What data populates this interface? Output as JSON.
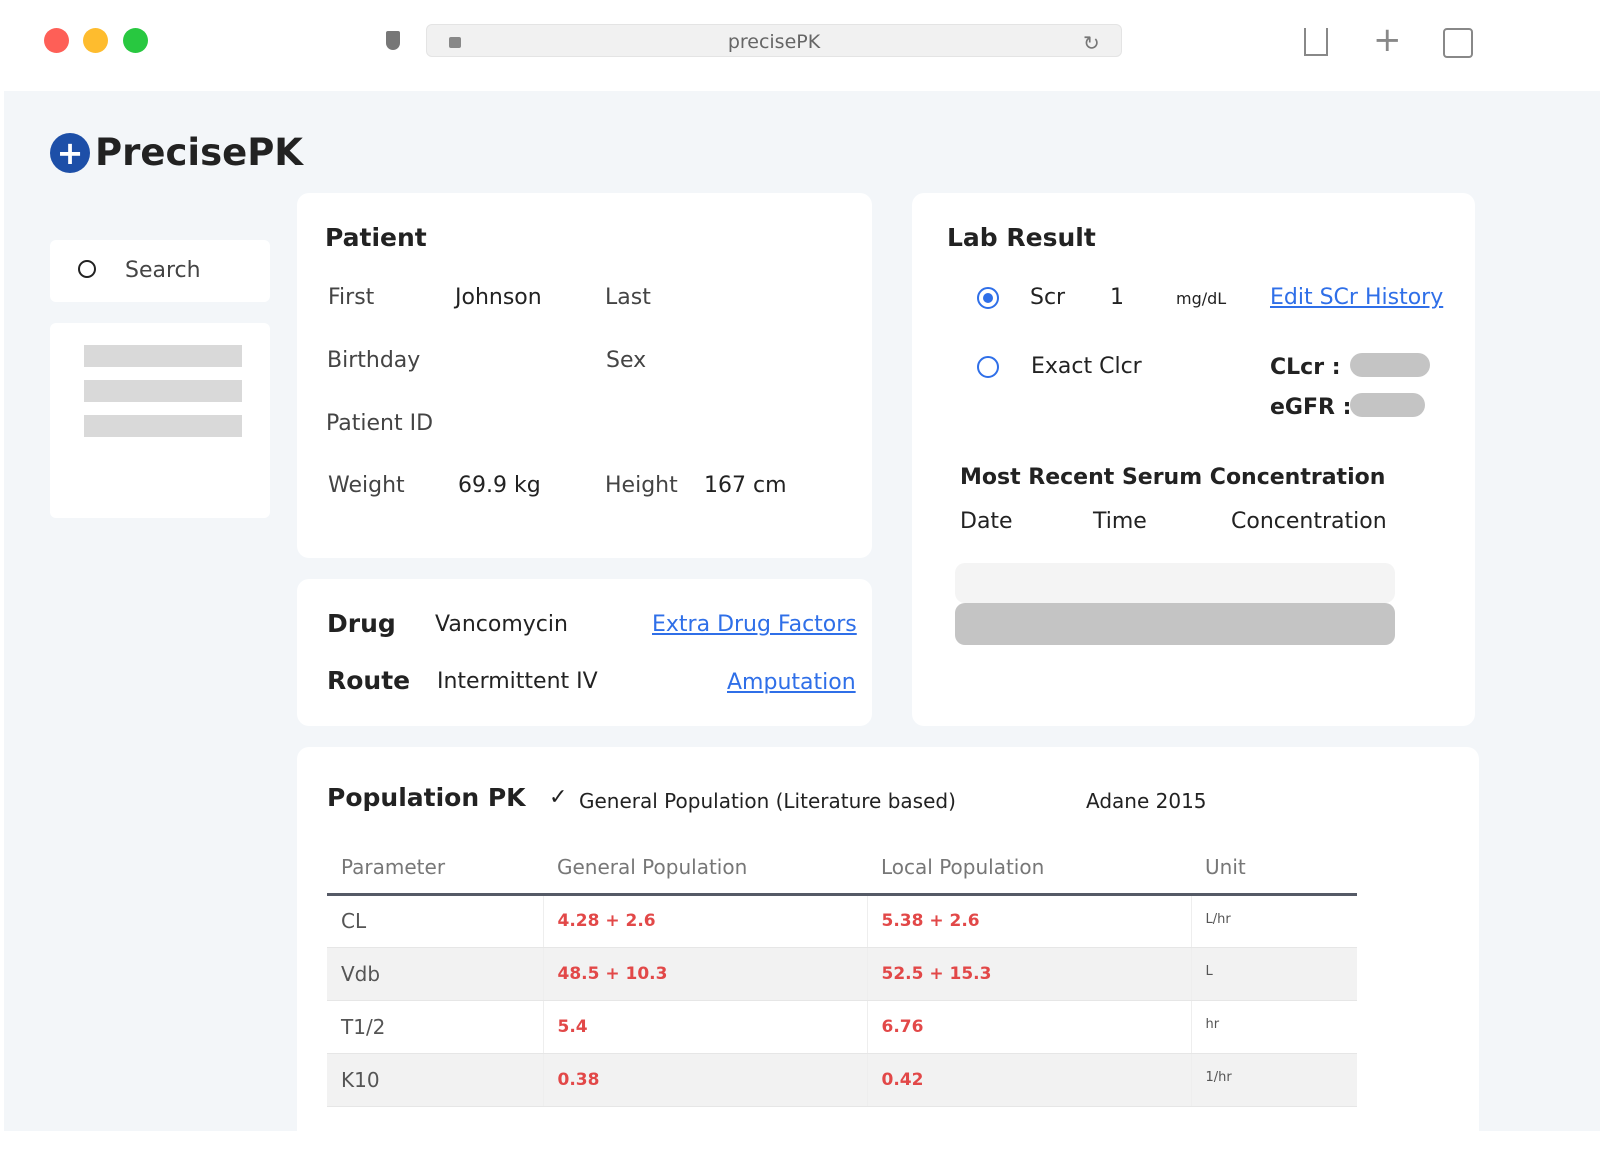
{
  "browser": {
    "url": "precisePK"
  },
  "app": {
    "logo": "PrecisePK",
    "brand_color": "#1d4fa8"
  },
  "sidebar": {
    "search_label": "Search"
  },
  "patient": {
    "title": "Patient",
    "first_label": "First",
    "first_value": "Johnson",
    "last_label": "Last",
    "birthday_label": "Birthday",
    "sex_label": "Sex",
    "id_label": "Patient ID",
    "weight_label": "Weight",
    "weight_value": "69.9 kg",
    "height_label": "Height",
    "height_value": "167 cm"
  },
  "drug": {
    "drug_label": "Drug",
    "drug_value": "Vancomycin",
    "extra_link": "Extra Drug Factors",
    "route_label": "Route",
    "route_value": "Intermittent IV",
    "amputation_link": "Amputation"
  },
  "lab": {
    "title": "Lab Result",
    "scr_label": "Scr",
    "scr_value": "1",
    "scr_unit": "mg/dL",
    "scr_selected": true,
    "edit_link": "Edit SCr History",
    "exact_label": "Exact Clcr",
    "clcr_label": "CLcr :",
    "egfr_label": "eGFR :",
    "serum_title": "Most Recent Serum Concentration",
    "cols": [
      "Date",
      "Time",
      "Concentration"
    ]
  },
  "pk": {
    "title": "Population PK",
    "option": "General Population (Literature based)",
    "reference": "Adane 2015",
    "headers": [
      "Parameter",
      "General Population",
      "Local Population",
      "Unit"
    ],
    "rows": [
      [
        "CL",
        "4.28 + 2.6",
        "5.38 + 2.6",
        "L/hr"
      ],
      [
        "Vdb",
        "48.5 + 10.3",
        "52.5 + 15.3",
        "L"
      ],
      [
        "T1/2",
        "5.4",
        "6.76",
        "hr"
      ],
      [
        "K10",
        "0.38",
        "0.42",
        "1/hr"
      ]
    ]
  }
}
